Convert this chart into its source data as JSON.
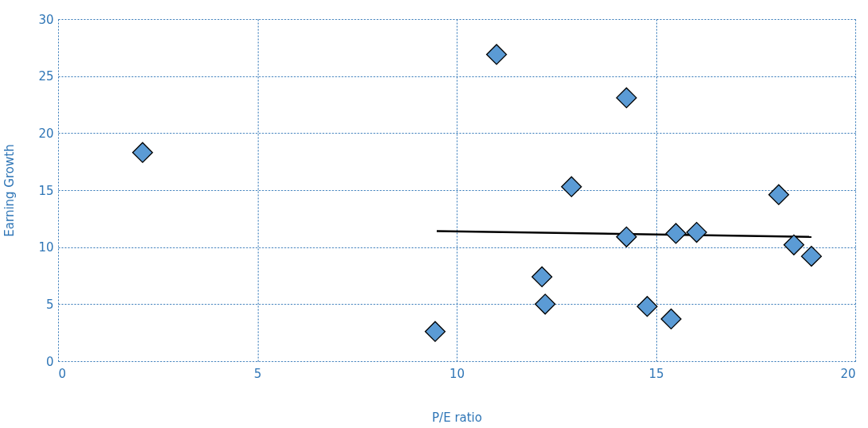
{
  "chart_data": {
    "type": "scatter",
    "xlabel": "P/E ratio",
    "ylabel": "Earning Growth",
    "xlim": [
      0,
      20
    ],
    "xticks": [
      0,
      5,
      10,
      15,
      20
    ],
    "ylim": [
      0,
      30
    ],
    "yticks": [
      0,
      5,
      10,
      15,
      20,
      25,
      30
    ],
    "grid": true,
    "series": [
      {
        "color": "#5b9bd5",
        "marker": "diamond",
        "x": [
          2.12,
          9.46,
          11.0,
          12.14,
          12.22,
          12.88,
          14.26,
          14.26,
          14.78,
          15.38,
          15.5,
          16.02,
          18.08,
          18.46,
          18.9
        ],
        "values": [
          18.3,
          2.6,
          26.9,
          7.4,
          5.0,
          15.3,
          23.1,
          10.9,
          4.8,
          3.7,
          11.2,
          11.3,
          14.6,
          10.2,
          9.2
        ]
      },
      {
        "type": "line",
        "color": "#000000",
        "line_style": "solid",
        "x": [
          9.5,
          18.9
        ],
        "values": [
          11.4,
          10.9
        ]
      }
    ]
  }
}
